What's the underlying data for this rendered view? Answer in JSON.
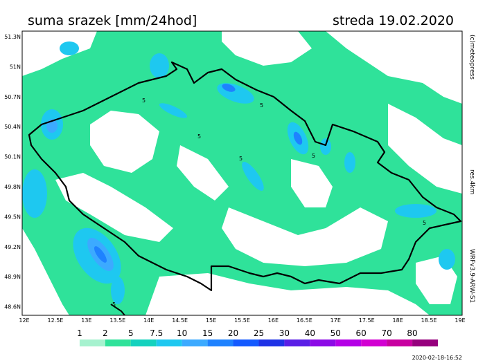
{
  "title": "suma srazek [mm/24hod]",
  "date": "streda 19.02.2020",
  "lat_labels": [
    "51.3N",
    "51N",
    "50.7N",
    "50.4N",
    "50.1N",
    "49.8N",
    "49.5N",
    "49.2N",
    "48.9N",
    "48.6N"
  ],
  "lon_labels": [
    "12E",
    "12.5E",
    "13E",
    "13.5E",
    "14E",
    "14.5E",
    "15E",
    "15.5E",
    "16E",
    "16.5E",
    "17E",
    "17.5E",
    "18E",
    "18.5E",
    "19E"
  ],
  "legend": {
    "labels": [
      "1",
      "2",
      "5",
      "7.5",
      "10",
      "15",
      "20",
      "25",
      "30",
      "40",
      "50",
      "60",
      "70",
      "80"
    ],
    "colors": [
      "#ffffff",
      "#a6f2cf",
      "#2fe29a",
      "#14d2be",
      "#1ec8f0",
      "#3caaff",
      "#1e82ff",
      "#145aff",
      "#1e32e6",
      "#5a1ee6",
      "#8c0ae6",
      "#b400e6",
      "#d200d2",
      "#c800a0",
      "#96007d"
    ]
  },
  "contour_labels": [
    "5",
    "5",
    "5",
    "5",
    "5",
    "5",
    "5"
  ],
  "credit": "(c)meteopress",
  "resolution": "res.4km",
  "model": "WRFv3.9-ARW-S1",
  "timestamp": "2020-02-18-16:52"
}
